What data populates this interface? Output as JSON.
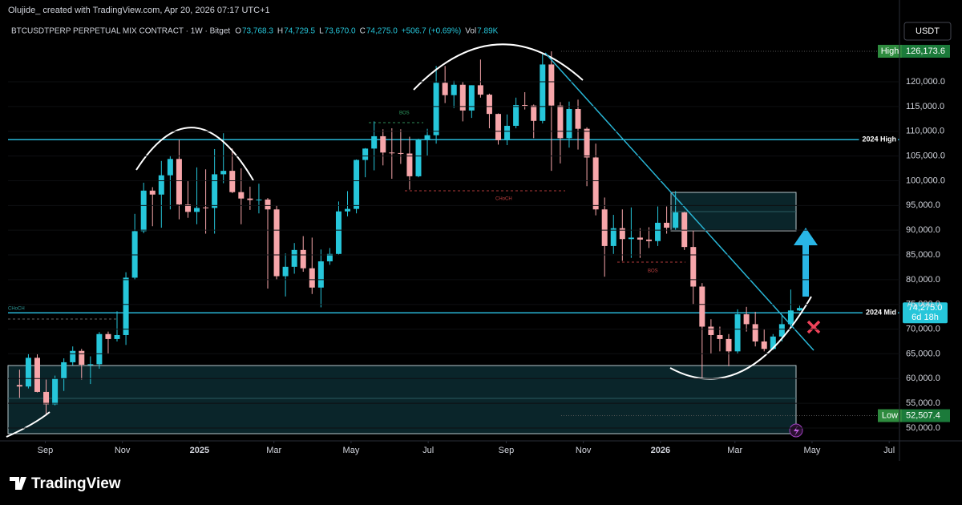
{
  "header": {
    "credit": "Olujide_ created with TradingView.com, Apr 20, 2026 07:17 UTC+1"
  },
  "watermark": "TradingView",
  "chart_data": {
    "type": "candlestick",
    "symbol": "BTCUSDTPERP PERPETUAL MIX CONTRACT · 1W · Bitget",
    "legend": [
      {
        "key": "O",
        "value": "73,768.3"
      },
      {
        "key": "H",
        "value": "74,729.5"
      },
      {
        "key": "L",
        "value": "73,670.0"
      },
      {
        "key": "C",
        "value": "74,275.0"
      }
    ],
    "change": "+506.7 (+0.69%)",
    "volume": {
      "key": "Vol",
      "value": "7.89K"
    },
    "currency": "USDT",
    "up_color": "#26c6da",
    "down_color": "#f7a6aa",
    "open": [
      58700,
      58400,
      64200,
      57300,
      54800,
      60000,
      63300,
      65600,
      62800,
      62900,
      69000,
      68000,
      68800,
      80400,
      89800,
      98000,
      97200,
      101100,
      104400,
      95200,
      93700,
      94600,
      94500,
      101300,
      102000,
      97700,
      96400,
      96100,
      96200,
      94200,
      80700,
      82600,
      86000,
      82300,
      78400,
      83700,
      85200,
      93800,
      94300,
      104200,
      106500,
      109000,
      105700,
      105600,
      105500,
      100900,
      108400,
      109200,
      119800,
      117300,
      119400,
      114200,
      119300,
      117400,
      113500,
      108200,
      111100,
      115300,
      115200,
      112100,
      123500,
      115200,
      108600,
      114500,
      110500,
      104700,
      94200,
      86800,
      90400,
      88200,
      88500,
      88100,
      87800,
      91500,
      90500,
      93600,
      86600,
      78600,
      70500,
      68800,
      68000,
      65500,
      73000,
      71000,
      67500,
      66000,
      68500,
      71000,
      73768.3
    ],
    "high": [
      61800,
      65000,
      64900,
      59800,
      60600,
      64100,
      66500,
      66000,
      64500,
      69400,
      69500,
      73600,
      81500,
      93300,
      99600,
      98700,
      104000,
      105100,
      108300,
      99900,
      102700,
      102300,
      106400,
      109600,
      106500,
      102500,
      98800,
      99400,
      96500,
      95000,
      85300,
      87400,
      88800,
      88500,
      86100,
      86400,
      95800,
      97900,
      104300,
      106600,
      112000,
      110400,
      110600,
      110400,
      108900,
      108500,
      110500,
      123200,
      123200,
      120200,
      120000,
      119300,
      124500,
      117600,
      113600,
      113400,
      116800,
      117900,
      115400,
      125700,
      126173.6,
      115900,
      116000,
      116400,
      110800,
      107500,
      96600,
      93100,
      94200,
      94600,
      90400,
      90600,
      94800,
      94800,
      97900,
      93700,
      90000,
      79300,
      72000,
      70500,
      69000,
      74000,
      74500,
      73500,
      70000,
      69000,
      72800,
      78000,
      74729.5
    ],
    "low": [
      56100,
      58000,
      57200,
      52507.4,
      54600,
      57500,
      62700,
      59800,
      58900,
      62000,
      65000,
      67500,
      66800,
      80000,
      89400,
      90800,
      90500,
      94200,
      92200,
      92500,
      91200,
      89300,
      89300,
      99500,
      97500,
      91200,
      94100,
      93400,
      78200,
      80000,
      76600,
      81200,
      81600,
      77100,
      74400,
      83000,
      85100,
      92800,
      93400,
      100700,
      102100,
      103100,
      100400,
      103400,
      98200,
      100700,
      105100,
      107500,
      115700,
      114700,
      112000,
      112700,
      116800,
      110600,
      107300,
      107200,
      110600,
      114400,
      108600,
      111600,
      102000,
      103500,
      106700,
      106300,
      98900,
      93000,
      80600,
      85200,
      83800,
      84400,
      84400,
      86400,
      86800,
      89300,
      90000,
      86000,
      75000,
      60000,
      65000,
      65500,
      62500,
      65000,
      69500,
      66500,
      65500,
      65800,
      67500,
      70500,
      73670
    ],
    "close": [
      58400,
      64200,
      57300,
      54800,
      60000,
      63300,
      65600,
      62800,
      62900,
      69000,
      68000,
      68800,
      80400,
      89800,
      98000,
      97200,
      101100,
      104400,
      95200,
      93700,
      94500,
      94500,
      101300,
      102000,
      97700,
      96400,
      96100,
      96200,
      94200,
      80700,
      82600,
      86000,
      82300,
      78400,
      83700,
      85200,
      93800,
      94300,
      104200,
      106500,
      109000,
      105700,
      105600,
      105500,
      100900,
      108400,
      109200,
      119800,
      117300,
      119400,
      114200,
      119300,
      117400,
      113500,
      108200,
      111100,
      115300,
      115200,
      112100,
      123500,
      115200,
      108600,
      114500,
      110500,
      104700,
      94200,
      86800,
      90400,
      88200,
      88500,
      88100,
      87800,
      91500,
      90500,
      93600,
      86600,
      78600,
      70500,
      68800,
      68000,
      65500,
      73000,
      71000,
      67500,
      66000,
      68500,
      71000,
      73768.3,
      74275
    ],
    "xlim": [
      -1.3,
      98.9
    ],
    "xticks": [
      {
        "value": 2.9,
        "label": "Sep"
      },
      {
        "value": 11.6,
        "label": "Nov"
      },
      {
        "value": 20.3,
        "label": "2025"
      },
      {
        "value": 28.7,
        "label": "Mar"
      },
      {
        "value": 37.4,
        "label": "May"
      },
      {
        "value": 46.1,
        "label": "Jul"
      },
      {
        "value": 54.9,
        "label": "Sep"
      },
      {
        "value": 63.6,
        "label": "Nov"
      },
      {
        "value": 72.3,
        "label": "2026"
      },
      {
        "value": 80.7,
        "label": "Mar"
      },
      {
        "value": 89.4,
        "label": "May"
      },
      {
        "value": 98.1,
        "label": "Jul"
      }
    ],
    "ylim": [
      47730,
      132000
    ],
    "yticks": [
      {
        "value": 50000,
        "label": "50,000.0"
      },
      {
        "value": 55000,
        "label": "55,000.0"
      },
      {
        "value": 60000,
        "label": "60,000.0"
      },
      {
        "value": 65000,
        "label": "65,000.0"
      },
      {
        "value": 70000,
        "label": "70,000.0"
      },
      {
        "value": 75000,
        "label": "75,000.0"
      },
      {
        "value": 80000,
        "label": "80,000.0"
      },
      {
        "value": 85000,
        "label": "85,000.0"
      },
      {
        "value": 90000,
        "label": "90,000.0"
      },
      {
        "value": 95000,
        "label": "95,000.0"
      },
      {
        "value": 100000,
        "label": "100,000.0"
      },
      {
        "value": 105000,
        "label": "105,000.0"
      },
      {
        "value": 110000,
        "label": "110,000.0"
      },
      {
        "value": 115000,
        "label": "115,000.0"
      },
      {
        "value": 120000,
        "label": "120,000.0"
      }
    ],
    "levels": [
      {
        "name": "2024 High",
        "value": 108300
      },
      {
        "name": "2024 Mid",
        "value": 73300
      }
    ],
    "high_tag": {
      "text": "High",
      "value": 126173.6,
      "label": "126,173.6"
    },
    "low_tag": {
      "text": "Low",
      "value": 52507.4,
      "label": "52,507.4"
    },
    "last_price": {
      "value": 74275,
      "label": "74,275.0",
      "countdown": "6d 18h"
    },
    "annotations": [
      "BOS",
      "CHoCH",
      "BOS",
      "CHoCH"
    ]
  }
}
